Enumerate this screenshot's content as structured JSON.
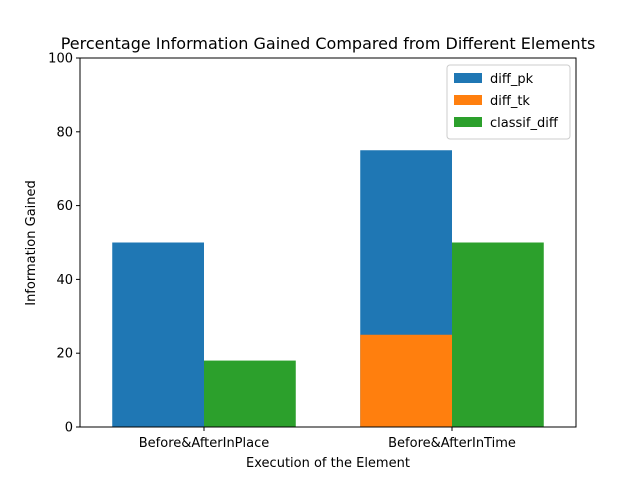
{
  "chart_data": {
    "type": "bar",
    "title": "Percentage Information Gained Compared from Different Elements",
    "xlabel": "Execution of the Element",
    "ylabel": "Information Gained",
    "categories": [
      "Before&AfterInPlace",
      "Before&AfterInTime"
    ],
    "ylim": [
      0,
      100
    ],
    "yticks": [
      0,
      20,
      40,
      60,
      80,
      100
    ],
    "grid": false,
    "legend_position": "top-right",
    "series": [
      {
        "name": "diff_pk",
        "color": "#1f77b4",
        "values": [
          50,
          75
        ],
        "slot": "left",
        "stacked_on": null
      },
      {
        "name": "diff_tk",
        "color": "#ff7f0e",
        "values": [
          0,
          25
        ],
        "slot": "left",
        "stacked_on": null
      },
      {
        "name": "classif_diff",
        "color": "#2ca02c",
        "values": [
          18,
          50
        ],
        "slot": "right",
        "stacked_on": null
      }
    ]
  }
}
